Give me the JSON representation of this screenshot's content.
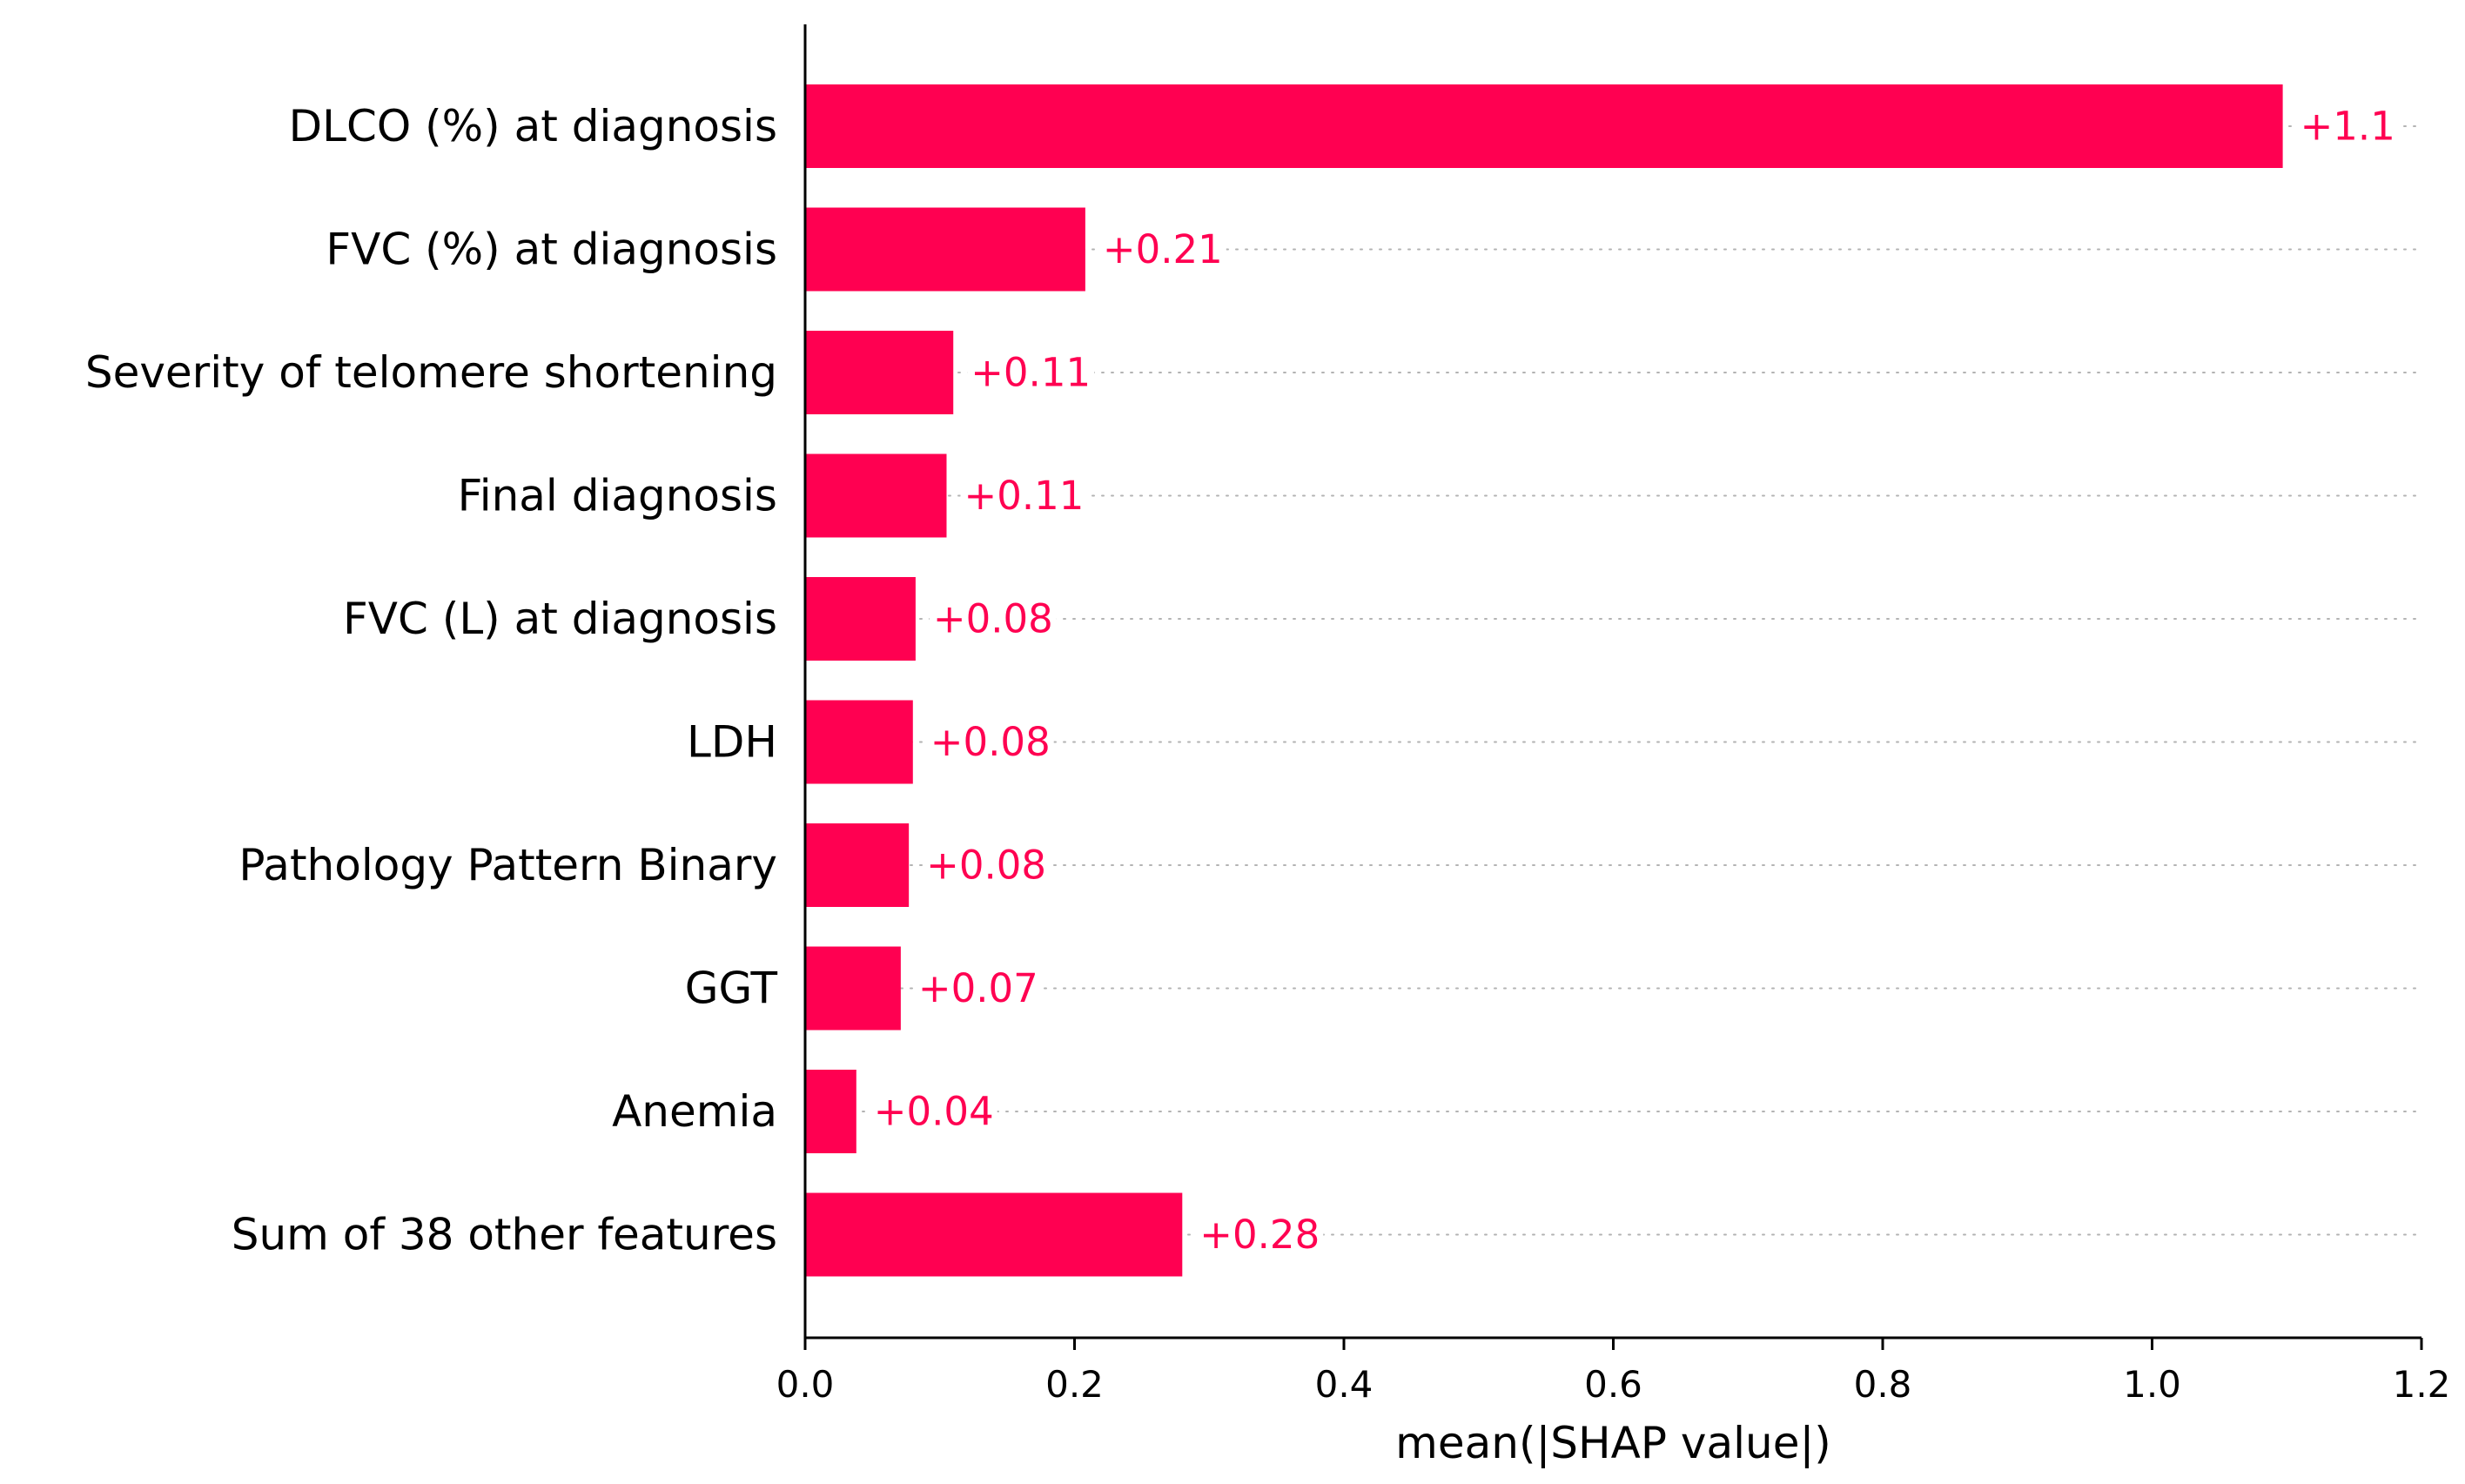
{
  "chart_data": {
    "type": "bar",
    "orientation": "horizontal",
    "categories": [
      "DLCO (%) at diagnosis",
      "FVC (%) at diagnosis",
      "Severity of telomere shortening",
      "Final diagnosis",
      "FVC (L) at diagnosis",
      "LDH",
      "Pathology Pattern Binary",
      "GGT",
      "Anemia",
      "Sum of 38 other features"
    ],
    "values": [
      1.097,
      0.208,
      0.11,
      0.105,
      0.082,
      0.08,
      0.077,
      0.071,
      0.038,
      0.28
    ],
    "value_labels": [
      "+1.1",
      "+0.21",
      "+0.11",
      "+0.11",
      "+0.08",
      "+0.08",
      "+0.08",
      "+0.07",
      "+0.04",
      "+0.28"
    ],
    "xlabel": "mean(|SHAP value|)",
    "ylabel": "",
    "title": "",
    "xlim": [
      0,
      1.2
    ],
    "xticks": [
      0.0,
      0.2,
      0.4,
      0.6,
      0.8,
      1.0,
      1.2
    ],
    "xtick_labels": [
      "0.0",
      "0.2",
      "0.4",
      "0.6",
      "0.8",
      "1.0",
      "1.2"
    ],
    "grid": "dotted horizontal row lines",
    "legend": "none",
    "colors": {
      "bar": "#ff0051",
      "value_label": "#ff0051",
      "axis": "#000000",
      "grid": "#b3b3b3"
    }
  }
}
